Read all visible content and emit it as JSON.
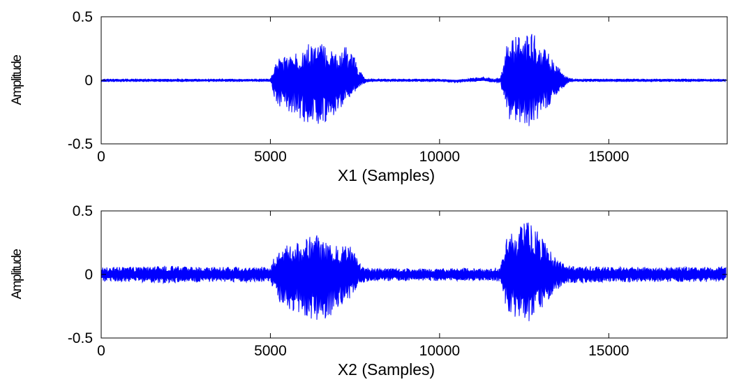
{
  "chart_data": [
    {
      "type": "line",
      "title": "",
      "xlabel": "X1 (Samples)",
      "ylabel": "Amplitude",
      "xlim": [
        0,
        18500
      ],
      "ylim": [
        -0.5,
        0.5
      ],
      "xticks": [
        0,
        5000,
        10000,
        15000
      ],
      "yticks": [
        -0.5,
        0,
        0.5
      ],
      "xtick_labels": [
        "0",
        "5000",
        "10000",
        "15000"
      ],
      "ytick_labels": [
        "-0.5",
        "0",
        "0.5"
      ],
      "grid": false,
      "series": [
        {
          "color": "#0000ff",
          "x": [
            0,
            1000,
            2000,
            3000,
            4000,
            5000,
            5200,
            5400,
            5600,
            5800,
            6000,
            6200,
            6400,
            6600,
            6800,
            7000,
            7200,
            7400,
            7600,
            7800,
            8000,
            9000,
            10000,
            10500,
            11000,
            11300,
            11600,
            11800,
            12000,
            12200,
            12400,
            12600,
            12800,
            13000,
            13200,
            13400,
            13600,
            13800,
            14000,
            15000,
            16000,
            17000,
            18500
          ],
          "y_max": [
            0.01,
            0.01,
            0.01,
            0.01,
            0.01,
            0.01,
            0.18,
            0.2,
            0.2,
            0.22,
            0.27,
            0.3,
            0.31,
            0.28,
            0.25,
            0.23,
            0.27,
            0.24,
            0.1,
            0.01,
            0.01,
            0.01,
            0.01,
            0.0,
            0.02,
            0.03,
            0.01,
            0.02,
            0.3,
            0.34,
            0.37,
            0.38,
            0.36,
            0.3,
            0.22,
            0.13,
            0.08,
            0.02,
            0.01,
            0.01,
            0.01,
            0.01,
            0.01
          ],
          "y_min": [
            -0.01,
            -0.01,
            -0.01,
            -0.01,
            -0.01,
            -0.01,
            -0.22,
            -0.24,
            -0.26,
            -0.28,
            -0.33,
            -0.35,
            -0.36,
            -0.34,
            -0.3,
            -0.27,
            -0.2,
            -0.15,
            -0.06,
            -0.02,
            -0.01,
            -0.01,
            -0.01,
            -0.02,
            -0.01,
            0.0,
            -0.02,
            -0.02,
            -0.3,
            -0.33,
            -0.36,
            -0.37,
            -0.34,
            -0.28,
            -0.22,
            -0.14,
            -0.08,
            -0.02,
            -0.01,
            -0.01,
            -0.01,
            -0.01,
            -0.01
          ]
        }
      ]
    },
    {
      "type": "line",
      "title": "",
      "xlabel": "X2 (Samples)",
      "ylabel": "Amplitude",
      "xlim": [
        0,
        18500
      ],
      "ylim": [
        -0.5,
        0.5
      ],
      "xticks": [
        0,
        5000,
        10000,
        15000
      ],
      "yticks": [
        -0.5,
        0,
        0.5
      ],
      "xtick_labels": [
        "0",
        "5000",
        "10000",
        "15000"
      ],
      "ytick_labels": [
        "-0.5",
        "0",
        "0.5"
      ],
      "grid": false,
      "series": [
        {
          "color": "#0000ff",
          "x": [
            0,
            1000,
            2000,
            3000,
            4000,
            5000,
            5200,
            5400,
            5600,
            5800,
            6000,
            6200,
            6400,
            6600,
            6800,
            7000,
            7200,
            7400,
            7600,
            7800,
            8000,
            9000,
            10000,
            10500,
            11000,
            11300,
            11600,
            11800,
            12000,
            12200,
            12400,
            12600,
            12800,
            13000,
            13200,
            13400,
            13600,
            13800,
            14000,
            15000,
            16000,
            17000,
            18500
          ],
          "y_max": [
            0.06,
            0.06,
            0.07,
            0.06,
            0.06,
            0.06,
            0.2,
            0.22,
            0.24,
            0.25,
            0.28,
            0.3,
            0.32,
            0.27,
            0.24,
            0.22,
            0.25,
            0.22,
            0.1,
            0.06,
            0.05,
            0.05,
            0.05,
            0.05,
            0.05,
            0.05,
            0.05,
            0.06,
            0.3,
            0.35,
            0.38,
            0.45,
            0.38,
            0.3,
            0.22,
            0.15,
            0.1,
            0.07,
            0.07,
            0.06,
            0.06,
            0.06,
            0.06
          ],
          "y_min": [
            -0.06,
            -0.06,
            -0.07,
            -0.06,
            -0.06,
            -0.06,
            -0.22,
            -0.25,
            -0.28,
            -0.3,
            -0.33,
            -0.35,
            -0.37,
            -0.35,
            -0.32,
            -0.28,
            -0.22,
            -0.18,
            -0.08,
            -0.06,
            -0.05,
            -0.05,
            -0.05,
            -0.05,
            -0.05,
            -0.05,
            -0.05,
            -0.06,
            -0.3,
            -0.33,
            -0.36,
            -0.37,
            -0.36,
            -0.3,
            -0.22,
            -0.14,
            -0.1,
            -0.07,
            -0.07,
            -0.06,
            -0.06,
            -0.06,
            -0.06
          ]
        }
      ]
    }
  ]
}
